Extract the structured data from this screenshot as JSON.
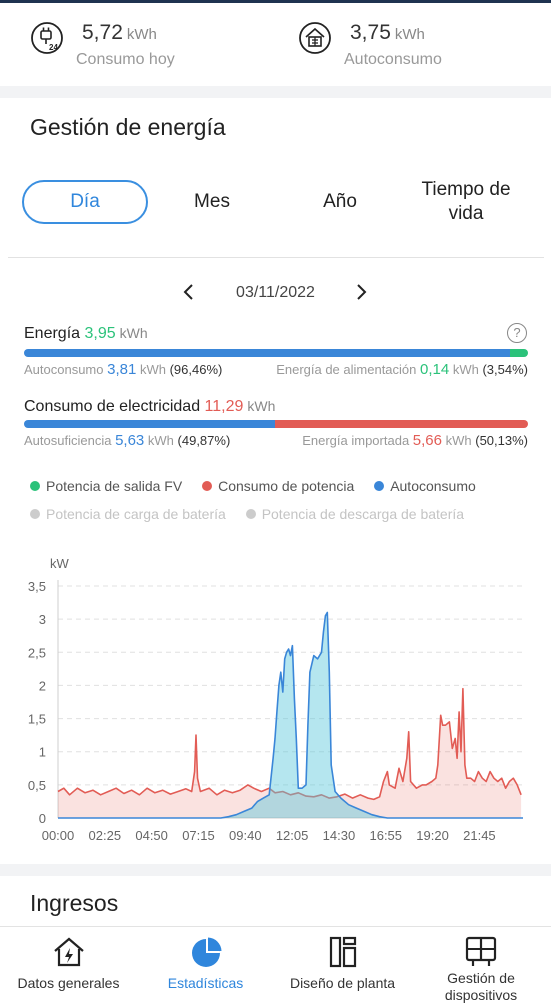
{
  "summary": {
    "consumo": {
      "value": "5,72",
      "unit": "kWh",
      "label": "Consumo hoy",
      "icon": "plug-24-icon"
    },
    "autoconsumo": {
      "value": "3,75",
      "unit": "kWh",
      "label": "Autoconsumo",
      "icon": "solar-house-icon"
    }
  },
  "section_title": "Gestión de energía",
  "tabs": [
    "Día",
    "Mes",
    "Año",
    "Tiempo de vida"
  ],
  "active_tab": "Día",
  "date": "03/11/2022",
  "energia": {
    "label": "Energía",
    "value": "3,95",
    "unit": "kWh",
    "autoconsumo_label": "Autoconsumo",
    "autoconsumo_value": "3,81",
    "autoconsumo_unit": "kWh",
    "autoconsumo_pct": "(96,46%)",
    "alimentacion_label": "Energía de alimentación",
    "alimentacion_value": "0,14",
    "alimentacion_unit": "kWh",
    "alimentacion_pct": "(3,54%)",
    "bar_fraction_autoconsumo": 0.9646
  },
  "consumo_electricidad": {
    "label": "Consumo de electricidad",
    "value": "11,29",
    "unit": "kWh",
    "autosuficiencia_label": "Autosuficiencia",
    "autosuficiencia_value": "5,63",
    "autosuficiencia_unit": "kWh",
    "autosuficiencia_pct": "(49,87%)",
    "importada_label": "Energía importada",
    "importada_value": "5,66",
    "importada_unit": "kWh",
    "importada_pct": "(50,13%)",
    "bar_fraction_autosuficiencia": 0.4987
  },
  "legend": [
    {
      "name": "Potencia de salida FV",
      "color": "#2bc27a",
      "active": true
    },
    {
      "name": "Consumo de potencia",
      "color": "#e25c55",
      "active": true
    },
    {
      "name": "Autoconsumo",
      "color": "#3a86d8",
      "active": true
    },
    {
      "name": "Potencia de carga de batería",
      "color": "#cccccc",
      "active": false
    },
    {
      "name": "Potencia de descarga de batería",
      "color": "#cccccc",
      "active": false
    }
  ],
  "colors": {
    "blue": "#3a86d8",
    "green": "#2bc27a",
    "red": "#e25c55",
    "accent": "#2f86dc"
  },
  "chart_data": {
    "type": "area",
    "ylabel": "kW",
    "ylim": [
      0,
      3.5
    ],
    "yticks": [
      "0",
      "0,5",
      "1",
      "1,5",
      "2",
      "2,5",
      "3",
      "3,5"
    ],
    "xticks": [
      "00:00",
      "02:25",
      "04:50",
      "07:15",
      "09:40",
      "12:05",
      "14:30",
      "16:55",
      "19:20",
      "21:45"
    ],
    "xlim_hours": [
      0,
      24
    ],
    "grid": "horizontal-dashed",
    "series": [
      {
        "name": "Consumo de potencia",
        "color": "#e25c55",
        "points": [
          [
            0,
            0.4
          ],
          [
            0.3,
            0.45
          ],
          [
            0.6,
            0.35
          ],
          [
            1,
            0.45
          ],
          [
            1.4,
            0.38
          ],
          [
            1.8,
            0.42
          ],
          [
            2.2,
            0.35
          ],
          [
            2.6,
            0.4
          ],
          [
            3,
            0.45
          ],
          [
            3.4,
            0.37
          ],
          [
            3.8,
            0.42
          ],
          [
            4.2,
            0.35
          ],
          [
            4.6,
            0.45
          ],
          [
            5,
            0.38
          ],
          [
            5.4,
            0.42
          ],
          [
            5.8,
            0.36
          ],
          [
            6.2,
            0.4
          ],
          [
            6.6,
            0.44
          ],
          [
            6.9,
            0.4
          ],
          [
            7.05,
            0.7
          ],
          [
            7.12,
            1.25
          ],
          [
            7.2,
            0.6
          ],
          [
            7.35,
            0.4
          ],
          [
            7.8,
            0.45
          ],
          [
            8.2,
            0.35
          ],
          [
            8.6,
            0.42
          ],
          [
            9,
            0.38
          ],
          [
            9.4,
            0.42
          ],
          [
            9.8,
            0.5
          ],
          [
            10.1,
            0.45
          ],
          [
            10.5,
            0.4
          ],
          [
            10.9,
            0.45
          ],
          [
            11.2,
            0.38
          ],
          [
            11.6,
            0.4
          ],
          [
            12,
            0.35
          ],
          [
            12.4,
            0.38
          ],
          [
            12.8,
            0.33
          ],
          [
            13.2,
            0.32
          ],
          [
            13.6,
            0.35
          ],
          [
            14,
            0.3
          ],
          [
            14.4,
            0.32
          ],
          [
            14.8,
            0.36
          ],
          [
            15.2,
            0.3
          ],
          [
            15.6,
            0.35
          ],
          [
            16,
            0.3
          ],
          [
            16.3,
            0.28
          ],
          [
            16.6,
            0.32
          ],
          [
            16.8,
            0.55
          ],
          [
            17,
            0.7
          ],
          [
            17.1,
            0.5
          ],
          [
            17.4,
            0.45
          ],
          [
            17.6,
            0.75
          ],
          [
            17.8,
            0.55
          ],
          [
            18,
            0.9
          ],
          [
            18.1,
            1.3
          ],
          [
            18.2,
            0.55
          ],
          [
            18.5,
            0.45
          ],
          [
            18.8,
            0.5
          ],
          [
            19,
            0.5
          ],
          [
            19.3,
            0.55
          ],
          [
            19.5,
            0.6
          ],
          [
            19.6,
            0.8
          ],
          [
            19.75,
            1.55
          ],
          [
            19.85,
            1.4
          ],
          [
            20,
            1.4
          ],
          [
            20.2,
            1.45
          ],
          [
            20.35,
            1.05
          ],
          [
            20.5,
            1.2
          ],
          [
            20.6,
            0.9
          ],
          [
            20.7,
            1.6
          ],
          [
            20.8,
            1.0
          ],
          [
            20.9,
            1.95
          ],
          [
            21,
            0.8
          ],
          [
            21.1,
            0.6
          ],
          [
            21.3,
            0.6
          ],
          [
            21.5,
            0.55
          ],
          [
            21.7,
            0.7
          ],
          [
            21.9,
            0.6
          ],
          [
            22.1,
            0.55
          ],
          [
            22.3,
            0.7
          ],
          [
            22.5,
            0.6
          ],
          [
            22.7,
            0.55
          ],
          [
            22.9,
            0.6
          ],
          [
            23.1,
            0.45
          ],
          [
            23.3,
            0.55
          ],
          [
            23.5,
            0.6
          ],
          [
            23.7,
            0.5
          ],
          [
            23.9,
            0.35
          ]
        ]
      },
      {
        "name": "Autoconsumo",
        "color": "#3a86d8",
        "points": [
          [
            0,
            0
          ],
          [
            8.4,
            0
          ],
          [
            8.8,
            0.02
          ],
          [
            9.2,
            0.05
          ],
          [
            9.6,
            0.1
          ],
          [
            10,
            0.15
          ],
          [
            10.3,
            0.25
          ],
          [
            10.6,
            0.3
          ],
          [
            10.9,
            0.35
          ],
          [
            11.1,
            0.9
          ],
          [
            11.2,
            1.2
          ],
          [
            11.3,
            1.6
          ],
          [
            11.4,
            2.0
          ],
          [
            11.5,
            2.2
          ],
          [
            11.6,
            1.9
          ],
          [
            11.7,
            2.4
          ],
          [
            11.8,
            2.5
          ],
          [
            11.9,
            2.55
          ],
          [
            12,
            2.45
          ],
          [
            12.1,
            2.6
          ],
          [
            12.2,
            1.8
          ],
          [
            12.3,
            1.2
          ],
          [
            12.4,
            0.45
          ],
          [
            12.6,
            0.45
          ],
          [
            12.8,
            0.5
          ],
          [
            12.9,
            1.4
          ],
          [
            13,
            2.2
          ],
          [
            13.2,
            2.45
          ],
          [
            13.4,
            2.4
          ],
          [
            13.6,
            2.5
          ],
          [
            13.7,
            2.8
          ],
          [
            13.8,
            3.05
          ],
          [
            13.9,
            3.1
          ],
          [
            14,
            2.2
          ],
          [
            14.1,
            0.8
          ],
          [
            14.3,
            0.4
          ],
          [
            14.6,
            0.3
          ],
          [
            15,
            0.2
          ],
          [
            15.4,
            0.15
          ],
          [
            15.8,
            0.1
          ],
          [
            16.2,
            0.05
          ],
          [
            16.6,
            0.02
          ],
          [
            17,
            0
          ],
          [
            24,
            0
          ]
        ]
      }
    ]
  },
  "ingresos_title": "Ingresos",
  "nav": [
    {
      "label": "Datos generales",
      "icon": "house-bolt-icon",
      "active": false
    },
    {
      "label": "Estadísticas",
      "icon": "pie-chart-icon",
      "active": true
    },
    {
      "label": "Diseño de planta",
      "icon": "layout-icon",
      "active": false
    },
    {
      "label": "Gestión de dispositivos",
      "icon": "device-icon",
      "active": false
    }
  ]
}
